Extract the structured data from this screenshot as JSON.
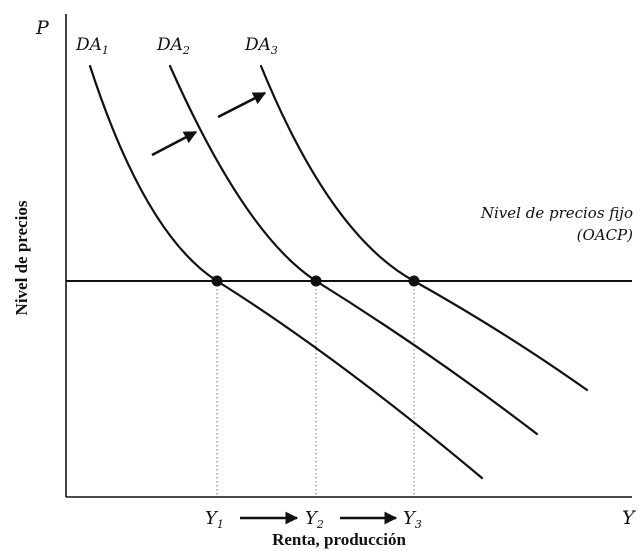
{
  "axes": {
    "y_axis_symbol": "P",
    "x_axis_symbol": "Y",
    "y_axis_title": "Nivel de precios",
    "x_axis_title": "Renta, producción"
  },
  "curves": [
    {
      "label_base": "DA",
      "label_sub": "1"
    },
    {
      "label_base": "DA",
      "label_sub": "2"
    },
    {
      "label_base": "DA",
      "label_sub": "3"
    }
  ],
  "price_line": {
    "label_line1": "Nivel de precios fijo",
    "label_line2": "(OACP)"
  },
  "output_ticks": [
    {
      "label_base": "Y",
      "label_sub": "1"
    },
    {
      "label_base": "Y",
      "label_sub": "2"
    },
    {
      "label_base": "Y",
      "label_sub": "3"
    }
  ],
  "colors": {
    "ink": "#111111",
    "guide": "#777777",
    "background": "#ffffff"
  }
}
